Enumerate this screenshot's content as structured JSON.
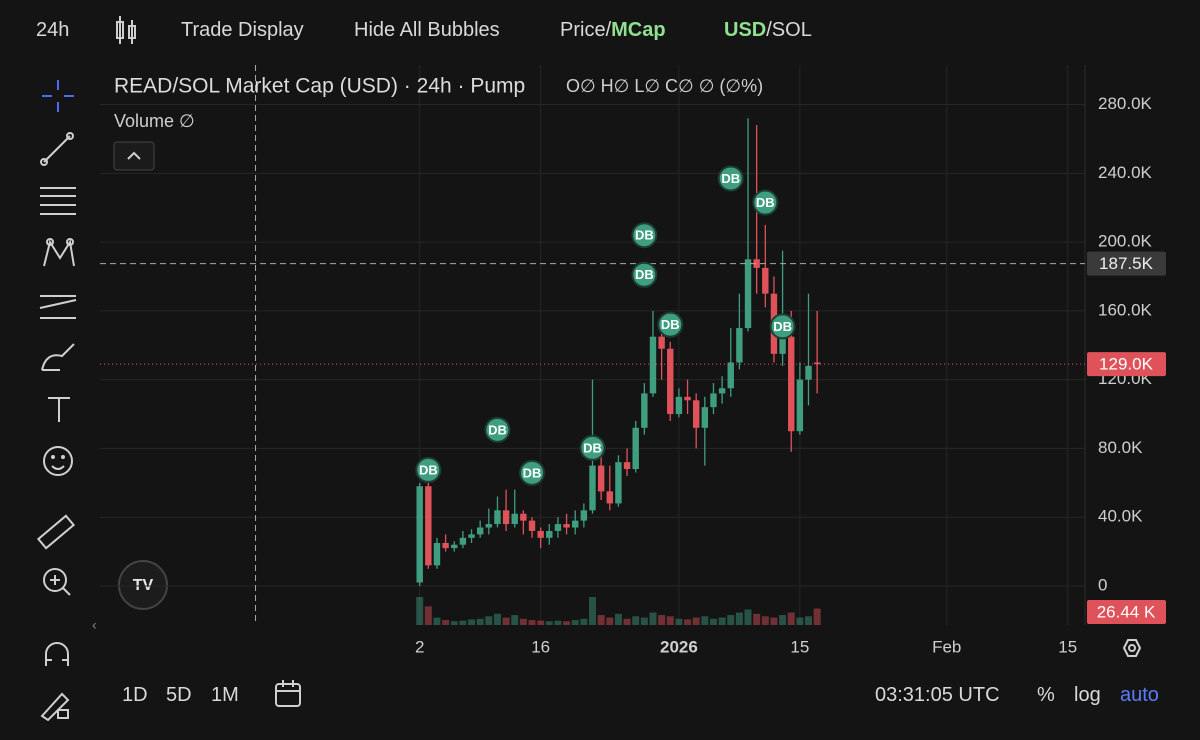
{
  "toolbar": {
    "interval": "24h",
    "trade_display": "Trade Display",
    "hide_bubbles": "Hide All Bubbles",
    "price": "Price/",
    "mcap": "MCap",
    "usd": "USD",
    "sol": "/SOL"
  },
  "chart_data": {
    "type": "candlestick",
    "title": "READ/SOL Market Cap (USD) · 24h · Pump",
    "ohlc_legend": "O∅ H∅ L∅ C∅ ∅ (∅%)",
    "volume_title": "Volume ∅",
    "x": [
      0,
      1,
      2,
      3,
      4,
      5,
      6,
      7,
      8,
      9,
      10,
      11,
      12,
      13,
      14,
      15,
      16,
      17,
      18,
      19,
      20,
      21,
      22,
      23,
      24,
      25,
      26,
      27,
      28,
      29,
      30,
      31,
      32,
      33,
      34,
      35,
      36,
      37,
      38,
      39,
      40,
      41,
      42,
      43,
      44,
      45,
      46
    ],
    "open": [
      2000,
      58000,
      12000,
      25000,
      22000,
      24000,
      28000,
      30000,
      34000,
      36000,
      44000,
      36000,
      42000,
      38000,
      32000,
      28000,
      32000,
      36000,
      34000,
      38000,
      44000,
      70000,
      55000,
      48000,
      72000,
      68000,
      92000,
      112000,
      145000,
      138000,
      100000,
      110000,
      108000,
      92000,
      104000,
      112000,
      115000,
      130000,
      150000,
      190000,
      185000,
      170000,
      135000,
      145000,
      90000,
      120000,
      130000
    ],
    "high": [
      60000,
      60000,
      28000,
      30000,
      26000,
      32000,
      33000,
      38000,
      45000,
      52000,
      56000,
      56000,
      44000,
      40000,
      34000,
      36000,
      40000,
      42000,
      44000,
      48000,
      120000,
      80000,
      70000,
      76000,
      80000,
      96000,
      118000,
      160000,
      150000,
      142000,
      115000,
      120000,
      112000,
      110000,
      118000,
      122000,
      150000,
      170000,
      272000,
      268000,
      210000,
      180000,
      195000,
      160000,
      130000,
      170000,
      160000
    ],
    "low": [
      0,
      10000,
      10000,
      20000,
      20000,
      22000,
      25000,
      28000,
      30000,
      34000,
      32000,
      34000,
      30000,
      28000,
      22000,
      24000,
      28000,
      30000,
      30000,
      34000,
      42000,
      50000,
      44000,
      46000,
      64000,
      66000,
      88000,
      110000,
      120000,
      96000,
      98000,
      100000,
      80000,
      70000,
      100000,
      106000,
      110000,
      126000,
      148000,
      170000,
      162000,
      130000,
      128000,
      78000,
      88000,
      105000,
      112000
    ],
    "close": [
      58000,
      12000,
      25000,
      22000,
      24000,
      28000,
      30000,
      34000,
      36000,
      44000,
      36000,
      42000,
      38000,
      32000,
      28000,
      32000,
      36000,
      34000,
      38000,
      44000,
      70000,
      55000,
      48000,
      72000,
      68000,
      92000,
      112000,
      145000,
      138000,
      100000,
      110000,
      108000,
      92000,
      104000,
      112000,
      115000,
      130000,
      150000,
      190000,
      185000,
      170000,
      135000,
      145000,
      90000,
      120000,
      128000,
      129000
    ],
    "volume": [
      45000,
      30000,
      12000,
      8000,
      6000,
      7000,
      9000,
      10000,
      14000,
      18000,
      12000,
      16000,
      10000,
      8000,
      7000,
      6000,
      7000,
      6000,
      8000,
      10000,
      45000,
      16000,
      12000,
      18000,
      10000,
      14000,
      12000,
      20000,
      16000,
      14000,
      10000,
      9000,
      12000,
      14000,
      10000,
      12000,
      16000,
      20000,
      25000,
      18000,
      14000,
      12000,
      16000,
      20000,
      12000,
      14000,
      26440
    ],
    "up_color": "#3f9e80",
    "down_color": "#e0525a",
    "xlim": [
      -37,
      77
    ],
    "xticks": [
      {
        "value": 0,
        "label": "2"
      },
      {
        "value": 14,
        "label": "16"
      },
      {
        "value": 30,
        "label": "2026"
      },
      {
        "value": 44,
        "label": "15"
      },
      {
        "value": 61,
        "label": "Feb"
      },
      {
        "value": 75,
        "label": "15"
      }
    ],
    "ylim": [
      -22700,
      303000
    ],
    "yticks": [
      0,
      {
        "value": 40000,
        "label": "40.0K"
      },
      {
        "value": 80000,
        "label": "80.0K"
      },
      {
        "value": 120000,
        "label": "120.0K"
      },
      {
        "value": 160000,
        "label": "160.0K"
      },
      {
        "value": 200000,
        "label": "200.0K"
      },
      {
        "value": 240000,
        "label": "240.0K"
      },
      {
        "value": 280000,
        "label": "280.0K"
      }
    ],
    "grid": true,
    "crosshair": {
      "x": -19,
      "y": {
        "value": 187500,
        "label": "187.5K"
      }
    },
    "last_price": {
      "value": 129000,
      "label": "129.0K"
    },
    "last_volume": {
      "value": 26440,
      "label": "26.44 K"
    },
    "bubbles": [
      {
        "x": 1,
        "value": 67500,
        "label": "DB"
      },
      {
        "x": 9,
        "value": 90800,
        "label": "DB"
      },
      {
        "x": 13,
        "value": 65800,
        "label": "DB"
      },
      {
        "x": 20,
        "value": 80300,
        "label": "DB"
      },
      {
        "x": 26,
        "value": 204000,
        "label": "DB"
      },
      {
        "x": 26,
        "value": 181000,
        "label": "DB"
      },
      {
        "x": 29,
        "value": 152000,
        "label": "DB"
      },
      {
        "x": 36,
        "value": 237000,
        "label": "DB"
      },
      {
        "x": 40,
        "value": 223000,
        "label": "DB"
      },
      {
        "x": 42,
        "value": 151000,
        "label": "DB"
      }
    ]
  },
  "footer": {
    "ranges": [
      "1D",
      "5D",
      "1M"
    ],
    "time": "03:31:05 UTC",
    "percent": "%",
    "log": "log",
    "auto": "auto"
  }
}
